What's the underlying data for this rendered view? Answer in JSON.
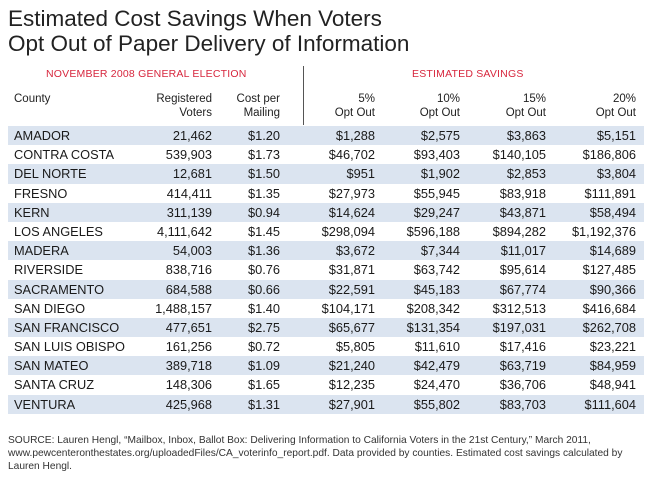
{
  "title": {
    "line1": "Estimated Cost Savings When Voters",
    "line2": "Opt Out of Paper Delivery of Information"
  },
  "chart_data": {
    "type": "table",
    "group_labels": {
      "left": "NOVEMBER 2008 GENERAL ELECTION",
      "right": "ESTIMATED SAVINGS"
    },
    "columns": [
      {
        "key": "county",
        "line1": "",
        "line2": "County"
      },
      {
        "key": "voters",
        "line1": "Registered",
        "line2": "Voters"
      },
      {
        "key": "cost",
        "line1": "Cost per",
        "line2": "Mailing"
      },
      {
        "key": "p5",
        "line1": "5%",
        "line2": "Opt Out"
      },
      {
        "key": "p10",
        "line1": "10%",
        "line2": "Opt Out"
      },
      {
        "key": "p15",
        "line1": "15%",
        "line2": "Opt Out"
      },
      {
        "key": "p20",
        "line1": "20%",
        "line2": "Opt Out"
      }
    ],
    "rows": [
      {
        "county": "AMADOR",
        "voters": "21,462",
        "cost": "$1.20",
        "p5": "$1,288",
        "p10": "$2,575",
        "p15": "$3,863",
        "p20": "$5,151"
      },
      {
        "county": "CONTRA COSTA",
        "voters": "539,903",
        "cost": "$1.73",
        "p5": "$46,702",
        "p10": "$93,403",
        "p15": "$140,105",
        "p20": "$186,806"
      },
      {
        "county": "DEL NORTE",
        "voters": "12,681",
        "cost": "$1.50",
        "p5": "$951",
        "p10": "$1,902",
        "p15": "$2,853",
        "p20": "$3,804"
      },
      {
        "county": "FRESNO",
        "voters": "414,411",
        "cost": "$1.35",
        "p5": "$27,973",
        "p10": "$55,945",
        "p15": "$83,918",
        "p20": "$111,891"
      },
      {
        "county": "KERN",
        "voters": "311,139",
        "cost": "$0.94",
        "p5": "$14,624",
        "p10": "$29,247",
        "p15": "$43,871",
        "p20": "$58,494"
      },
      {
        "county": "LOS ANGELES",
        "voters": "4,111,642",
        "cost": "$1.45",
        "p5": "$298,094",
        "p10": "$596,188",
        "p15": "$894,282",
        "p20": "$1,192,376"
      },
      {
        "county": "MADERA",
        "voters": "54,003",
        "cost": "$1.36",
        "p5": "$3,672",
        "p10": "$7,344",
        "p15": "$11,017",
        "p20": "$14,689"
      },
      {
        "county": "RIVERSIDE",
        "voters": "838,716",
        "cost": "$0.76",
        "p5": "$31,871",
        "p10": "$63,742",
        "p15": "$95,614",
        "p20": "$127,485"
      },
      {
        "county": "SACRAMENTO",
        "voters": "684,588",
        "cost": "$0.66",
        "p5": "$22,591",
        "p10": "$45,183",
        "p15": "$67,774",
        "p20": "$90,366"
      },
      {
        "county": "SAN DIEGO",
        "voters": "1,488,157",
        "cost": "$1.40",
        "p5": "$104,171",
        "p10": "$208,342",
        "p15": "$312,513",
        "p20": "$416,684"
      },
      {
        "county": "SAN FRANCISCO",
        "voters": "477,651",
        "cost": "$2.75",
        "p5": "$65,677",
        "p10": "$131,354",
        "p15": "$197,031",
        "p20": "$262,708"
      },
      {
        "county": "SAN LUIS OBISPO",
        "voters": "161,256",
        "cost": "$0.72",
        "p5": "$5,805",
        "p10": "$11,610",
        "p15": "$17,416",
        "p20": "$23,221"
      },
      {
        "county": "SAN MATEO",
        "voters": "389,718",
        "cost": "$1.09",
        "p5": "$21,240",
        "p10": "$42,479",
        "p15": "$63,719",
        "p20": "$84,959"
      },
      {
        "county": "SANTA CRUZ",
        "voters": "148,306",
        "cost": "$1.65",
        "p5": "$12,235",
        "p10": "$24,470",
        "p15": "$36,706",
        "p20": "$48,941"
      },
      {
        "county": "VENTURA",
        "voters": "425,968",
        "cost": "$1.31",
        "p5": "$27,901",
        "p10": "$55,802",
        "p15": "$83,703",
        "p20": "$111,604"
      }
    ]
  },
  "source": "SOURCE: Lauren Hengl, “Mailbox, Inbox, Ballot Box: Delivering Information to California Voters in the 21st Century,” March 2011, www.pewcenteronthestates.org/uploadedFiles/CA_voterinfo_report.pdf. Data provided by counties. Estimated cost savings calculated by Lauren Hengl.",
  "colors": {
    "row_shade": "#dbe4f0",
    "group_label": "#d7263d"
  }
}
